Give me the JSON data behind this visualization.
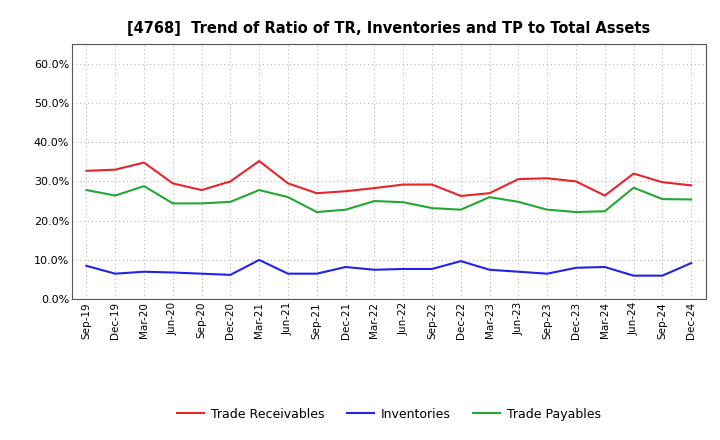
{
  "title": "[4768]  Trend of Ratio of TR, Inventories and TP to Total Assets",
  "x_labels": [
    "Sep-19",
    "Dec-19",
    "Mar-20",
    "Jun-20",
    "Sep-20",
    "Dec-20",
    "Mar-21",
    "Jun-21",
    "Sep-21",
    "Dec-21",
    "Mar-22",
    "Jun-22",
    "Sep-22",
    "Dec-22",
    "Mar-23",
    "Jun-23",
    "Sep-23",
    "Dec-23",
    "Mar-24",
    "Jun-24",
    "Sep-24",
    "Dec-24"
  ],
  "trade_receivables": [
    0.327,
    0.33,
    0.348,
    0.295,
    0.278,
    0.3,
    0.352,
    0.295,
    0.27,
    0.275,
    0.283,
    0.292,
    0.292,
    0.263,
    0.27,
    0.306,
    0.308,
    0.3,
    0.264,
    0.32,
    0.298,
    0.29
  ],
  "inventories": [
    0.085,
    0.065,
    0.07,
    0.068,
    0.065,
    0.062,
    0.1,
    0.065,
    0.065,
    0.082,
    0.075,
    0.077,
    0.077,
    0.097,
    0.075,
    0.07,
    0.065,
    0.08,
    0.082,
    0.06,
    0.06,
    0.092
  ],
  "trade_payables": [
    0.278,
    0.264,
    0.288,
    0.244,
    0.244,
    0.248,
    0.278,
    0.26,
    0.222,
    0.228,
    0.25,
    0.247,
    0.232,
    0.228,
    0.26,
    0.248,
    0.228,
    0.222,
    0.224,
    0.284,
    0.255,
    0.254
  ],
  "tr_color": "#e8242b",
  "inv_color": "#2222e8",
  "tp_color": "#22a832",
  "ylim": [
    0.0,
    0.65
  ],
  "yticks": [
    0.0,
    0.1,
    0.2,
    0.3,
    0.4,
    0.5,
    0.6
  ],
  "background_color": "#ffffff",
  "grid_color": "#aaaaaa",
  "line_width": 1.5,
  "legend_labels": [
    "Trade Receivables",
    "Inventories",
    "Trade Payables"
  ]
}
